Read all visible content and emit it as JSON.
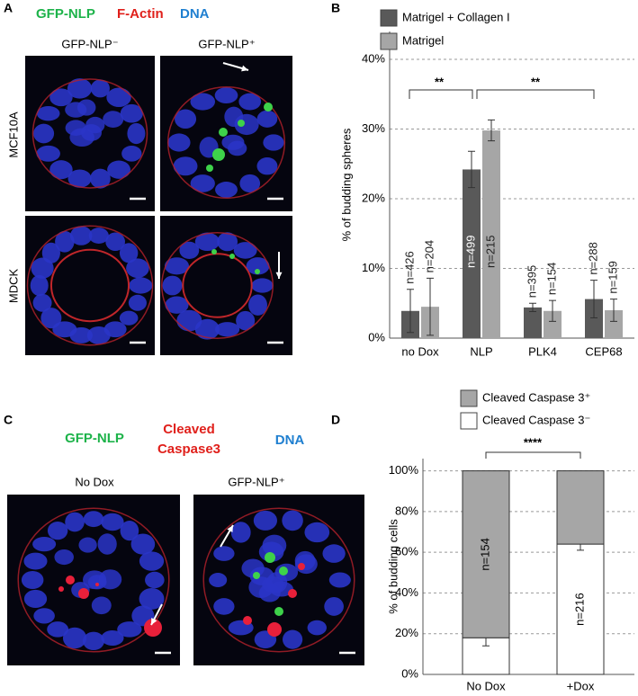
{
  "panel_a": {
    "letter": "A",
    "stains": [
      "GFP-NLP",
      "F-Actin",
      "DNA"
    ],
    "columns": [
      "GFP-NLP⁻",
      "GFP-NLP⁺"
    ],
    "rows": [
      "MCF10A",
      "MDCK"
    ]
  },
  "panel_c": {
    "letter": "C",
    "stains": [
      "GFP-NLP",
      "Cleaved",
      "Caspase3",
      "DNA"
    ],
    "columns": [
      "No Dox",
      "GFP-NLP⁺"
    ]
  },
  "chart_data": [
    {
      "type": "bar",
      "panel": "B",
      "ylabel": "% of budding spheres",
      "categories": [
        "no Dox",
        "NLP",
        "PLK4",
        "CEP68"
      ],
      "series": [
        {
          "name": "Matrigel + Collagen I",
          "color": "#595959",
          "values": [
            3.9,
            24.2,
            4.4,
            5.6
          ],
          "errors": [
            3.1,
            2.6,
            0.6,
            2.7
          ],
          "n_labels": [
            "n=426",
            "n=499",
            "n=395",
            "n=288"
          ]
        },
        {
          "name": "Matrigel",
          "color": "#a6a6a6",
          "values": [
            4.5,
            29.8,
            3.9,
            4.0
          ],
          "errors": [
            4.1,
            1.5,
            1.5,
            1.6
          ],
          "n_labels": [
            "n=204",
            "n=215",
            "n=154",
            "n=159"
          ]
        }
      ],
      "ylim": [
        0,
        44
      ],
      "yticks": [
        {
          "value": 0,
          "label": "0%"
        },
        {
          "value": 10,
          "label": "10%"
        },
        {
          "value": 20,
          "label": "20%"
        },
        {
          "value": 30,
          "label": "30%"
        },
        {
          "value": 40,
          "label": "40%"
        }
      ],
      "grid": true,
      "significance": [
        "**",
        "**"
      ]
    },
    {
      "type": "bar",
      "stacked": true,
      "panel": "D",
      "ylabel": "% of budding cells",
      "categories": [
        "No Dox",
        "+Dox"
      ],
      "series": [
        {
          "name": "Cleaved Caspase 3⁺",
          "color": "#a6a6a6",
          "values": [
            82,
            36
          ]
        },
        {
          "name": "Cleaved Caspase 3⁻",
          "color": "#ffffff",
          "values": [
            18,
            64
          ],
          "errors": [
            4,
            3
          ]
        }
      ],
      "n_labels": [
        "n=154",
        "n=216"
      ],
      "ylim": [
        0,
        106
      ],
      "yticks": [
        {
          "value": 0,
          "label": "0%"
        },
        {
          "value": 20,
          "label": "20%"
        },
        {
          "value": 40,
          "label": "40%"
        },
        {
          "value": 60,
          "label": "60%"
        },
        {
          "value": 80,
          "label": "80%"
        },
        {
          "value": 100,
          "label": "100%"
        }
      ],
      "grid": true,
      "significance": [
        "****"
      ]
    }
  ]
}
